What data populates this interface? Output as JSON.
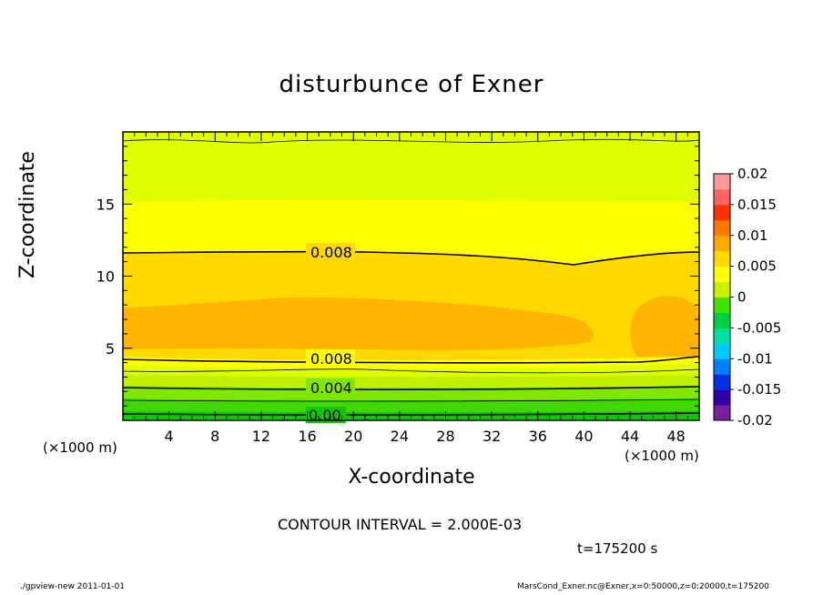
{
  "chart_data": {
    "type": "contour",
    "title": "disturbunce of Exner",
    "xlabel": "X-coordinate",
    "ylabel": "Z-coordinate",
    "x_unit": "(×1000 m)",
    "z_unit": "(×1000 m)",
    "xlim": [
      0,
      50
    ],
    "ylim": [
      0,
      20
    ],
    "x_ticks": [
      4,
      8,
      12,
      16,
      20,
      24,
      28,
      32,
      36,
      40,
      44,
      48
    ],
    "y_ticks": [
      5,
      10,
      15
    ],
    "contour_interval_text": "CONTOUR INTERVAL = 2.000E-03",
    "contour_labels": [
      "0.008",
      "0.008",
      "0.004",
      "0.00"
    ],
    "colorbar": {
      "ticks": [
        "0.02",
        "0.015",
        "0.01",
        "0.005",
        "0",
        "-0.005",
        "-0.01",
        "-0.015",
        "-0.02"
      ],
      "range": [
        -0.02,
        0.02
      ],
      "colors": [
        "#7a1fa0",
        "#3000a8",
        "#0030e0",
        "#0080ff",
        "#00c8ff",
        "#00e0a0",
        "#00d040",
        "#40e000",
        "#c8f000",
        "#ffff00",
        "#ffd800",
        "#ffa800",
        "#ff7800",
        "#ff3000",
        "#ff6060",
        "#ff9898"
      ]
    },
    "field_summary": {
      "z_bands": [
        {
          "z": [
            0,
            0.5
          ],
          "value_range": [
            -0.001,
            0.0
          ]
        },
        {
          "z": [
            0.5,
            4.0
          ],
          "value_range": [
            0.0,
            0.007
          ]
        },
        {
          "z": [
            4.0,
            9.0
          ],
          "value_range": [
            0.008,
            0.011
          ]
        },
        {
          "z": [
            9.0,
            11.7
          ],
          "value_range": [
            0.008,
            0.009
          ]
        },
        {
          "z": [
            11.7,
            15.3
          ],
          "value_range": [
            0.006,
            0.008
          ]
        },
        {
          "z": [
            15.3,
            20.0
          ],
          "value_range": [
            0.004,
            0.006
          ]
        }
      ]
    }
  },
  "time_text": "t=175200 s",
  "footer_left": "./gpview-new   2011-01-01",
  "footer_right": "MarsCond_Exner.nc@Exner,x=0:50000,z=0:20000,t=175200"
}
